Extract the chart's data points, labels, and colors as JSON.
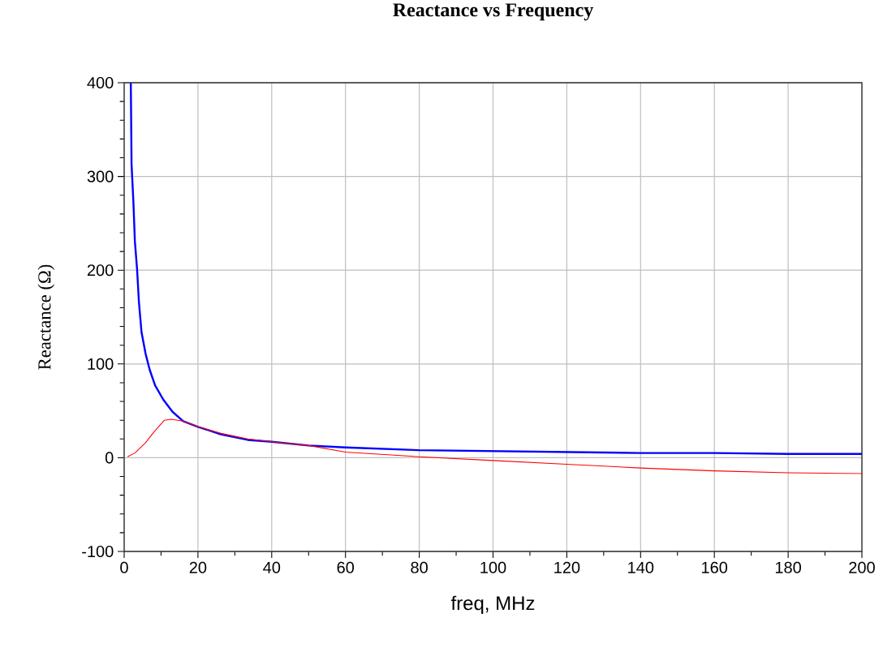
{
  "chart_data": {
    "type": "line",
    "title": "Reactance vs Frequency",
    "xlabel": "freq, MHz",
    "ylabel": "Reactance (Ω)",
    "xlim": [
      0,
      200
    ],
    "xticks": [
      0,
      20,
      40,
      60,
      80,
      100,
      120,
      140,
      160,
      180,
      200
    ],
    "ylim": [
      -100,
      400
    ],
    "yticks": [
      -100,
      0,
      100,
      200,
      300,
      400
    ],
    "grid": true,
    "series": [
      {
        "color": "#0000ff",
        "x": [
          1.8,
          2.0,
          2.5,
          2.9,
          3.5,
          4.0,
          4.7,
          5.8,
          6.9,
          8.4,
          10.6,
          13.1,
          16,
          20,
          26.2,
          33.5,
          40,
          50,
          60,
          80,
          100,
          120,
          140,
          160,
          180,
          200
        ],
        "values": [
          400,
          313,
          273,
          231,
          201,
          166,
          134,
          111,
          94,
          77,
          62,
          49,
          39,
          33,
          25,
          19,
          17,
          13,
          11,
          8,
          7,
          6,
          5,
          5,
          4,
          4
        ]
      },
      {
        "color": "#ff0000",
        "x": [
          0.9,
          2.9,
          5.8,
          8,
          10.9,
          12.7,
          16,
          20,
          26.2,
          33.5,
          40,
          50,
          60,
          80,
          100,
          120,
          140,
          160,
          180,
          200
        ],
        "values": [
          1,
          5,
          16,
          27,
          40,
          41,
          39,
          33,
          26,
          20,
          17,
          13,
          6,
          1,
          -3,
          -7,
          -11,
          -14,
          -16,
          -17
        ]
      }
    ]
  }
}
